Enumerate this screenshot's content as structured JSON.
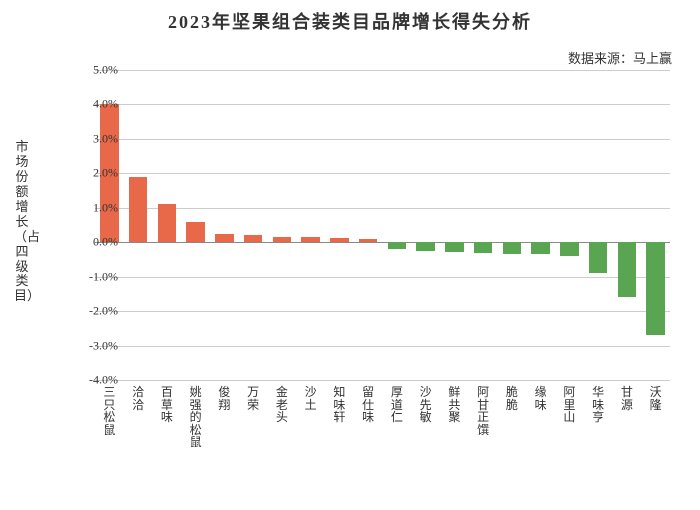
{
  "chart": {
    "type": "bar",
    "title": "2023年坚果组合装类目品牌增长得失分析",
    "title_fontsize": 18,
    "source_label": "数据来源：马上赢",
    "source_fontsize": 13,
    "ylabel": "市场份额增长（占四级类目）",
    "ylabel_fontsize": 13,
    "ylim_min": -4.0,
    "ylim_max": 5.0,
    "ytick_step": 1.0,
    "ytick_fontsize": 12,
    "tick_format_suffix": "%",
    "tick_format_decimals": 1,
    "background_color": "#ffffff",
    "grid_color": "#cccccc",
    "zero_line_color": "#888888",
    "positive_color": "#e8684a",
    "negative_color": "#5aa552",
    "bar_width_ratio": 0.65,
    "xlabel_fontsize": 12,
    "categories": [
      "三只松鼠",
      "洽洽",
      "百草味",
      "姚强的松鼠",
      "俊翔",
      "万荣",
      "金老头",
      "沙土",
      "知味轩",
      "留仕味",
      "厚道仁",
      "沙先敏",
      "鲜共聚",
      "阿甘正馔",
      "脆脆",
      "缘味",
      "阿里山",
      "华味亨",
      "甘源",
      "沃隆"
    ],
    "values": [
      4.0,
      1.9,
      1.1,
      0.6,
      0.25,
      0.2,
      0.15,
      0.15,
      0.12,
      0.1,
      -0.2,
      -0.25,
      -0.28,
      -0.3,
      -0.35,
      -0.35,
      -0.4,
      -0.9,
      -1.6,
      -2.7
    ]
  }
}
